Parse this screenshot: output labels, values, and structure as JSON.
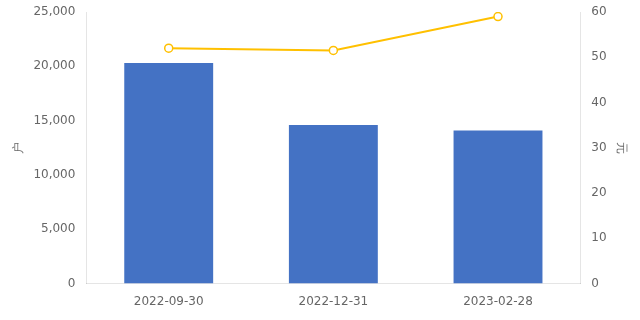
{
  "chart_data": {
    "type": "bar",
    "categories": [
      "2022-09-30",
      "2022-12-31",
      "2023-02-28"
    ],
    "series": [
      {
        "type": "bar",
        "color": "#4472C4",
        "values": [
          20300,
          14600,
          14100
        ]
      },
      {
        "type": "line",
        "color": "#FFC000",
        "marker": "o",
        "axis": "y2",
        "values": [
          52,
          51.5,
          59
        ]
      }
    ],
    "ylabel": "户",
    "y2label": "元",
    "ylim": [
      0,
      25000
    ],
    "yticks": [
      0,
      {
        "value": 5000,
        "label": "5,000"
      },
      {
        "value": 10000,
        "label": "10,000"
      },
      {
        "value": 15000,
        "label": "15,000"
      },
      {
        "value": 20000,
        "label": "20,000"
      },
      {
        "value": 25000,
        "label": "25,000"
      }
    ],
    "y2lim": [
      0,
      60
    ],
    "y2ticks": [
      0,
      10,
      20,
      30,
      40,
      50,
      60
    ],
    "grid": false
  }
}
